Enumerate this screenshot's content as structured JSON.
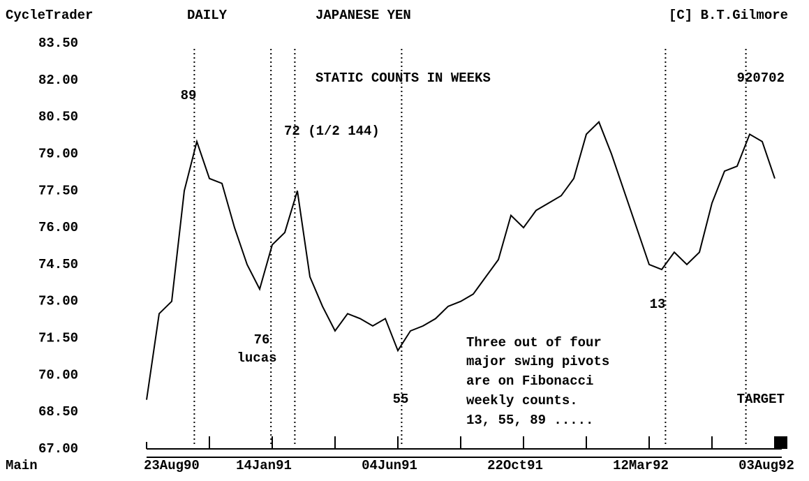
{
  "chart_data": {
    "type": "line",
    "title": "JAPANESE YEN",
    "header": {
      "app": "CycleTrader",
      "period": "DAILY",
      "copyright": "[C] B.T.Gilmore",
      "panel": "Main"
    },
    "categories": [
      "23Aug90",
      null,
      null,
      null,
      null,
      null,
      null,
      null,
      null,
      null,
      "14Jan91",
      null,
      null,
      null,
      null,
      null,
      null,
      null,
      null,
      null,
      "04Jun91",
      null,
      null,
      null,
      null,
      null,
      null,
      null,
      null,
      null,
      "22Oct91",
      null,
      null,
      null,
      null,
      null,
      null,
      null,
      null,
      null,
      "12Mar92",
      null,
      null,
      null,
      null,
      null,
      null,
      null,
      null,
      null,
      "03Aug92"
    ],
    "series": [
      {
        "name": "JAPANESE YEN",
        "color": "#000000",
        "values": [
          69.0,
          72.5,
          73.0,
          77.5,
          79.5,
          78.0,
          77.8,
          76.0,
          74.5,
          73.5,
          75.3,
          75.8,
          77.5,
          74.0,
          72.8,
          71.8,
          72.5,
          72.3,
          72.0,
          72.3,
          71.0,
          71.8,
          72.0,
          72.3,
          72.8,
          73.0,
          73.3,
          74.0,
          74.7,
          76.5,
          76.0,
          76.7,
          77.0,
          77.3,
          78.0,
          79.8,
          80.3,
          79.0,
          77.5,
          76.0,
          74.5,
          74.3,
          75.0,
          74.5,
          75.0,
          77.0,
          78.3,
          78.5,
          79.8,
          79.5,
          78.0
        ]
      }
    ],
    "ylim": [
      67.0,
      83.5
    ],
    "yticks": [
      {
        "value": 67.0,
        "label": "67.00"
      },
      {
        "value": 68.5,
        "label": "68.50"
      },
      {
        "value": 70.0,
        "label": "70.00"
      },
      {
        "value": 71.5,
        "label": "71.50"
      },
      {
        "value": 73.0,
        "label": "73.00"
      },
      {
        "value": 74.5,
        "label": "74.50"
      },
      {
        "value": 76.0,
        "label": "76.00"
      },
      {
        "value": 77.5,
        "label": "77.50"
      },
      {
        "value": 79.0,
        "label": "79.00"
      },
      {
        "value": 80.5,
        "label": "80.50"
      },
      {
        "value": 82.0,
        "label": "82.00"
      },
      {
        "value": 83.5,
        "label": "83.50"
      }
    ],
    "xticks": [
      0,
      5,
      10,
      15,
      20,
      25,
      30,
      35,
      40,
      45,
      50
    ],
    "cycle_lines": [
      3.8,
      9.9,
      11.8,
      20.3,
      41.3,
      47.7
    ],
    "annotations": [
      "STATIC COUNTS IN WEEKS",
      "920702",
      "89",
      "72 (1/2 144)",
      "76",
      "lucas",
      "55",
      "13",
      "Three out of four",
      "major swing pivots",
      "are on Fibonacci",
      "weekly counts.",
      "13, 55, 89 .....",
      "TARGET"
    ]
  }
}
